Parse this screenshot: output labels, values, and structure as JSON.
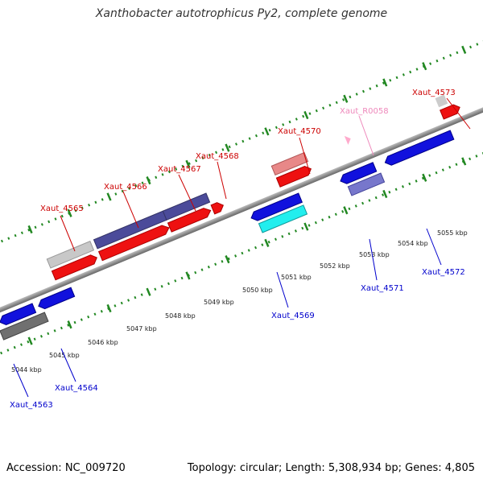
{
  "title": "Xanthobacter autotrophicus Py2, complete genome",
  "footer": {
    "accession": "Accession: NC_009720",
    "summary": "Topology: circular; Length: 5,308,934 bp; Genes: 4,805"
  },
  "colors": {
    "forward_label": "#cc0000",
    "reverse_label": "#0000cc",
    "rna_label": "#ee88bb",
    "tick": "#228822",
    "backbone": "#888888"
  },
  "ruler": {
    "labels": [
      "5044 kbp",
      "5045 kbp",
      "5046 kbp",
      "5047 kbp",
      "5048 kbp",
      "5049 kbp",
      "5050 kbp",
      "5051 kbp",
      "5052 kbp",
      "5053 kbp",
      "5054 kbp",
      "5055 kbp"
    ]
  },
  "genes_forward": [
    {
      "name": "Xaut_4565",
      "color": "#cc0000"
    },
    {
      "name": "Xaut_4566",
      "color": "#cc0000"
    },
    {
      "name": "Xaut_4567",
      "color": "#cc0000"
    },
    {
      "name": "Xaut_4568",
      "color": "#cc0000"
    },
    {
      "name": "Xaut_4570",
      "color": "#cc0000"
    },
    {
      "name": "Xaut_R0058",
      "color": "#ee99cc"
    },
    {
      "name": "Xaut_4573",
      "color": "#cc0000"
    }
  ],
  "genes_reverse": [
    {
      "name": "Xaut_4563",
      "color": "#0000cc"
    },
    {
      "name": "Xaut_4564",
      "color": "#0000cc"
    },
    {
      "name": "Xaut_4569",
      "color": "#0000cc"
    },
    {
      "name": "Xaut_4571",
      "color": "#0000cc"
    },
    {
      "name": "Xaut_4572",
      "color": "#0000cc"
    }
  ]
}
